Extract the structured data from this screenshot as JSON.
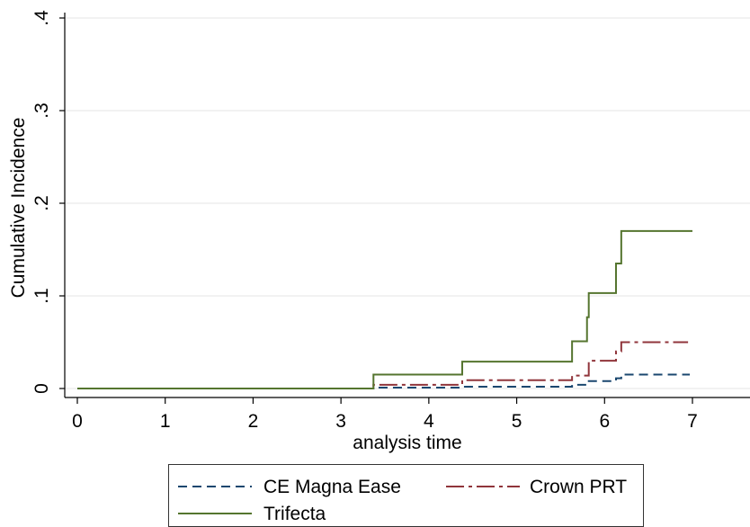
{
  "chart_data": {
    "type": "line",
    "line_shape": "step",
    "xlabel": "analysis time",
    "ylabel": "Cumulative Incidence",
    "xlim": [
      0,
      7
    ],
    "ylim": [
      0,
      0.4
    ],
    "x_ticks": [
      0,
      1,
      2,
      3,
      4,
      5,
      6,
      7
    ],
    "x_tick_labels": [
      "0",
      "1",
      "2",
      "3",
      "4",
      "5",
      "6",
      "7"
    ],
    "y_ticks": [
      0,
      0.1,
      0.2,
      0.3,
      0.4
    ],
    "y_tick_labels": [
      "0",
      ".1",
      ".2",
      ".3",
      ".4"
    ],
    "grid": true,
    "legend_position": "bottom",
    "series": [
      {
        "name": "CE Magna Ease",
        "color": "#1a476f",
        "line_style": "dashed",
        "x": [
          0,
          3.37,
          4.38,
          5.63,
          5.82,
          6.13,
          6.19,
          6.97
        ],
        "y": [
          0,
          0.001,
          0.002,
          0.004,
          0.008,
          0.011,
          0.015,
          0.015
        ]
      },
      {
        "name": "Crown PRT",
        "color": "#90353b",
        "line_style": "dash-dot",
        "x": [
          0,
          3.37,
          4.38,
          5.63,
          5.82,
          6.13,
          6.19,
          6.95
        ],
        "y": [
          0,
          0.004,
          0.009,
          0.014,
          0.03,
          0.04,
          0.05,
          0.05
        ]
      },
      {
        "name": "Trifecta",
        "color": "#55752f",
        "line_style": "solid",
        "x": [
          0,
          3.37,
          4.38,
          5.63,
          5.8,
          5.82,
          6.13,
          6.19,
          7.0
        ],
        "y": [
          0,
          0.015,
          0.029,
          0.051,
          0.077,
          0.103,
          0.135,
          0.17,
          0.17
        ]
      }
    ]
  }
}
